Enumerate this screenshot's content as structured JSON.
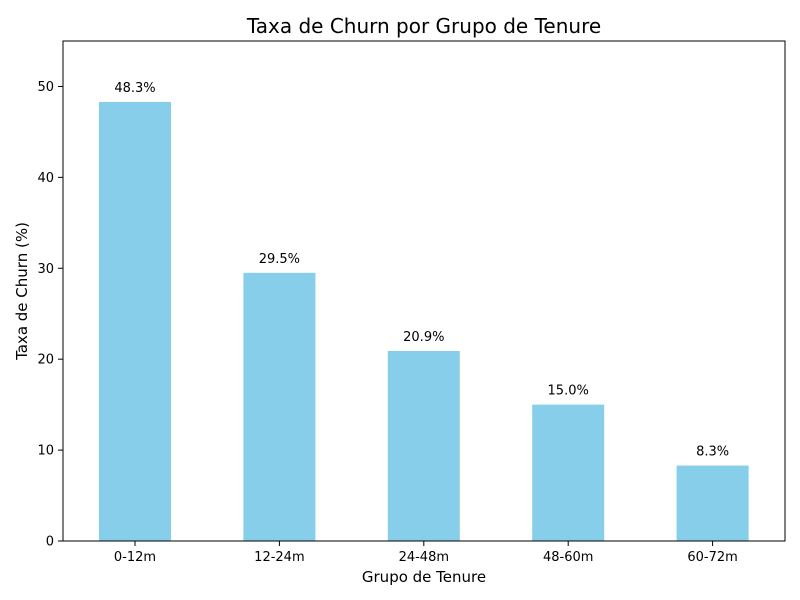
{
  "colors": {
    "bar": "#87CEEB",
    "axis": "#000000",
    "background": "#ffffff"
  },
  "chart_data": {
    "type": "bar",
    "title": "Taxa de Churn por Grupo de Tenure",
    "xlabel": "Grupo de Tenure",
    "ylabel": "Taxa de Churn (%)",
    "categories": [
      "0-12m",
      "12-24m",
      "24-48m",
      "48-60m",
      "60-72m"
    ],
    "values": [
      48.3,
      29.5,
      20.9,
      15.0,
      8.3
    ],
    "data_labels": [
      "48.3%",
      "29.5%",
      "20.9%",
      "15.0%",
      "8.3%"
    ],
    "ylim": [
      0,
      55
    ],
    "yticks": [
      0,
      10,
      20,
      30,
      40,
      50
    ],
    "grid": false,
    "legend": "none"
  }
}
